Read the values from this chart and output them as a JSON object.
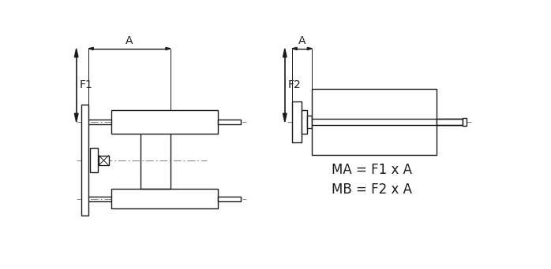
{
  "bg_color": "#ffffff",
  "line_color": "#1a1a1a",
  "dash_color": "#808080",
  "fig_width": 6.98,
  "fig_height": 3.42,
  "dpi": 100,
  "text_MA": "MA = F1 x A",
  "text_MB": "MB = F2 x A",
  "label_A": "A",
  "label_F1": "F1",
  "label_F2": "F2"
}
